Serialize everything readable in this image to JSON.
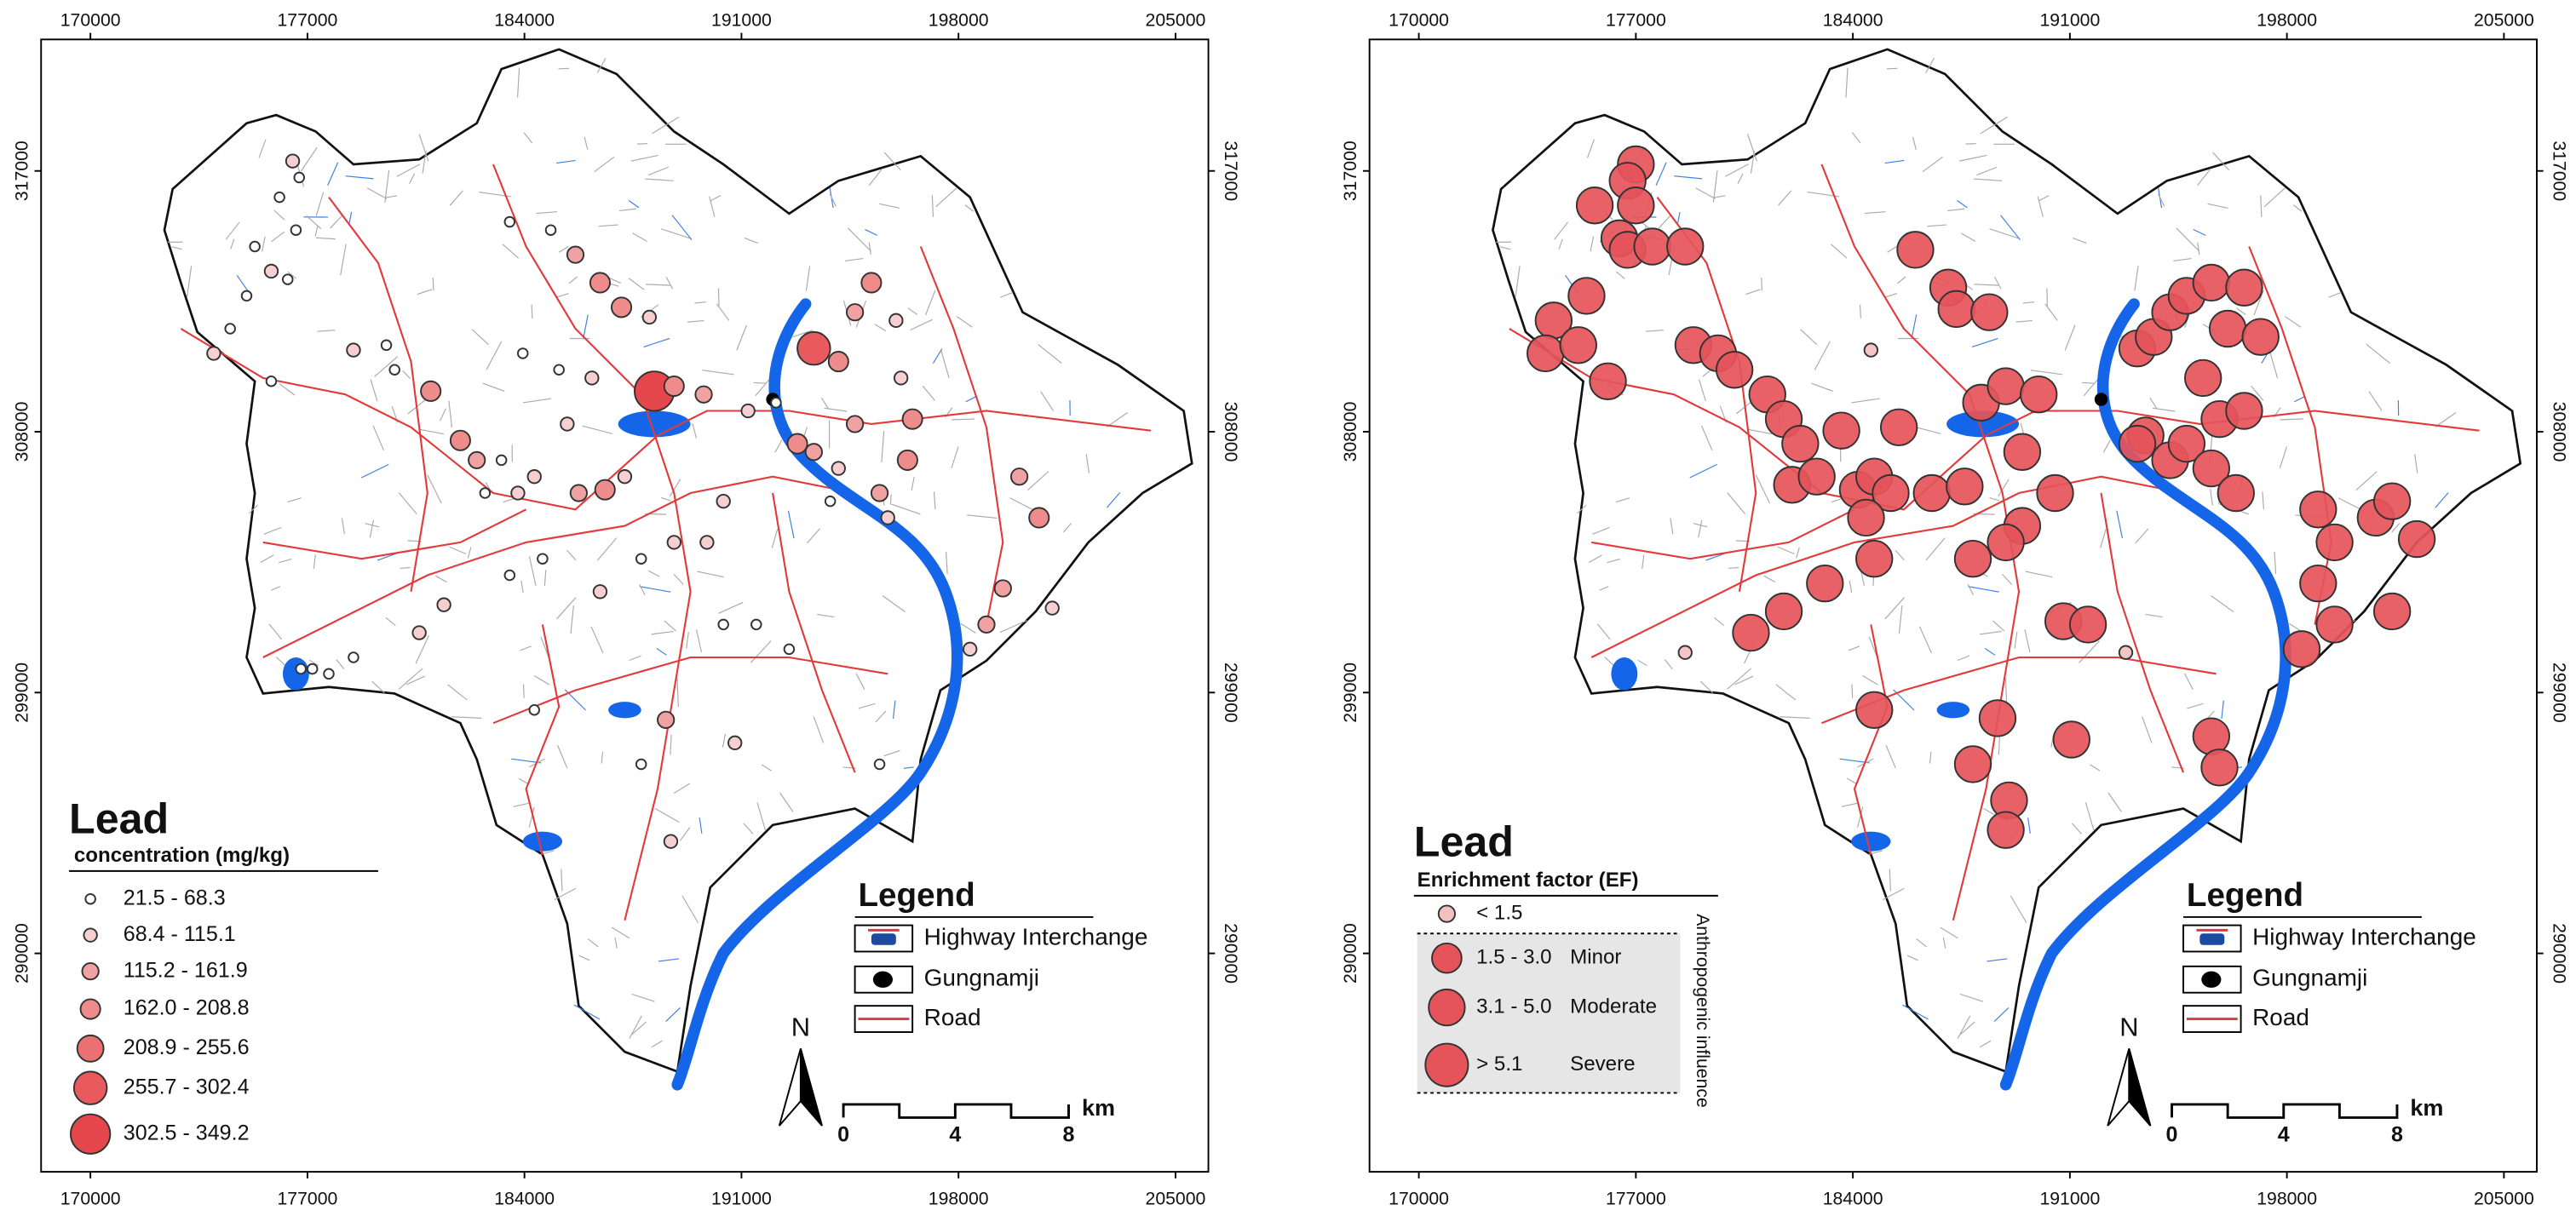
{
  "panels": [
    {
      "x_ticks": [
        170000,
        177000,
        184000,
        191000,
        198000,
        205000
      ],
      "y_ticks": [
        317000,
        308000,
        299000,
        290000
      ],
      "title": "Lead",
      "subtitle": "concentration (mg/kg)",
      "classes": [
        "21.5 - 68.3",
        "68.4 - 115.1",
        "115.2 - 161.9",
        "162.0 - 208.8",
        "208.9 - 255.6",
        "255.7 - 302.4",
        "302.5 - 349.2"
      ],
      "legend": {
        "title": "Legend",
        "items": [
          "Highway Interchange",
          "Gungnamji",
          "Road"
        ]
      },
      "north": "N",
      "scale_bar": {
        "ticks": [
          0,
          4,
          8
        ],
        "unit": "km"
      }
    },
    {
      "x_ticks": [
        170000,
        177000,
        184000,
        191000,
        198000,
        205000
      ],
      "y_ticks": [
        317000,
        308000,
        299000,
        290000
      ],
      "title": "Lead",
      "subtitle": "Enrichment factor (EF)",
      "classes": [
        {
          "range": "< 1.5"
        },
        {
          "range": "1.5 - 3.0",
          "label": "Minor"
        },
        {
          "range": "3.1 - 5.0",
          "label": "Moderate"
        },
        {
          "range": "> 5.1",
          "label": "Severe"
        }
      ],
      "group_label": "Anthropogenic influence",
      "legend": {
        "title": "Legend",
        "items": [
          "Highway Interchange",
          "Gungnamji",
          "Road"
        ]
      },
      "north": "N",
      "scale_bar": {
        "ticks": [
          0,
          4,
          8
        ],
        "unit": "km"
      }
    }
  ]
}
